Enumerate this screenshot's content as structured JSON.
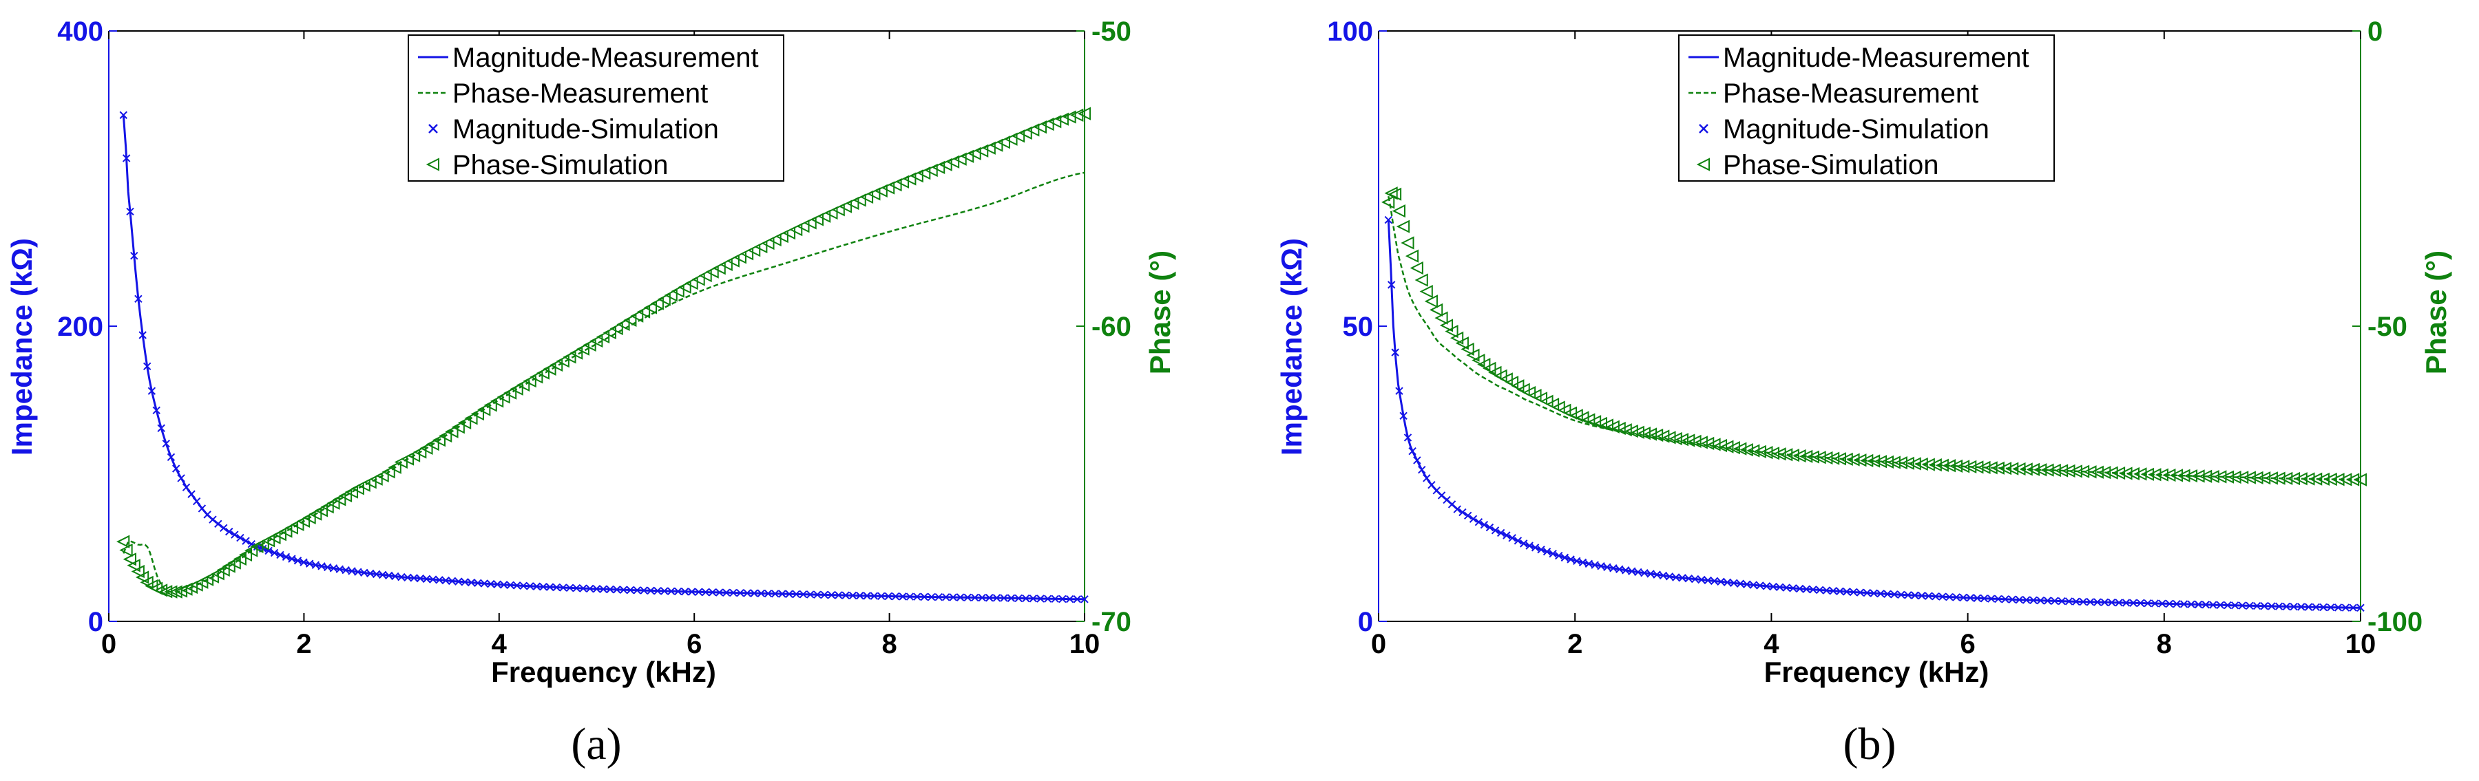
{
  "colors": {
    "magnitude": "#1414e6",
    "phase": "#0f820f",
    "axis": "#000000"
  },
  "legend_labels": [
    "Magnitude-Measurement",
    "Phase-Measurement",
    "Magnitude-Simulation",
    "Phase-Simulation"
  ],
  "chart_data": [
    {
      "type": "line",
      "caption": "(a)",
      "xlabel": "Frequency (kHz)",
      "ylabel_left": "Impedance (kΩ)",
      "ylabel_right": "Phase (°)",
      "xlim": [
        0,
        10
      ],
      "xticks": [
        0,
        2,
        4,
        6,
        8,
        10
      ],
      "ylim_left": [
        0,
        400
      ],
      "yticks_left": [
        0,
        200,
        400
      ],
      "ylim_right": [
        -70,
        -50
      ],
      "yticks_right": [
        -70,
        -60,
        -50
      ],
      "grid": false,
      "legend_position": "top-center",
      "x": [
        0.15,
        0.2,
        0.3,
        0.4,
        0.5,
        0.6,
        0.7,
        0.8,
        1,
        1.2,
        1.5,
        2,
        2.5,
        3,
        4,
        5,
        6,
        7,
        8,
        9,
        10
      ],
      "series": [
        {
          "name": "Magnitude-Measurement",
          "axis": "left",
          "style": "solid-line",
          "values": [
            343,
            290,
            220,
            170,
            140,
            118,
            102,
            90,
            73,
            62,
            51,
            40,
            34,
            30,
            25,
            22,
            20,
            18.5,
            17,
            16,
            15
          ]
        },
        {
          "name": "Phase-Measurement",
          "axis": "right",
          "style": "dashed-line",
          "values": [
            -67.7,
            -67.3,
            -67.4,
            -67.5,
            -68.5,
            -69.0,
            -69.0,
            -68.9,
            -68.6,
            -68.2,
            -67.5,
            -66.6,
            -65.6,
            -64.6,
            -62.5,
            -60.6,
            -58.9,
            -57.8,
            -56.8,
            -55.9,
            -54.8
          ]
        },
        {
          "name": "Magnitude-Simulation",
          "axis": "left",
          "style": "x-marker",
          "values": [
            343,
            290,
            220,
            170,
            140,
            118,
            102,
            90,
            73,
            62,
            51,
            40,
            34,
            30,
            25,
            22,
            20,
            18.5,
            17,
            16,
            15
          ]
        },
        {
          "name": "Phase-Simulation",
          "axis": "right",
          "style": "triangle-marker",
          "values": [
            -67.3,
            -67.8,
            -68.3,
            -68.7,
            -68.9,
            -69.0,
            -69.0,
            -68.9,
            -68.6,
            -68.2,
            -67.5,
            -66.6,
            -65.6,
            -64.6,
            -62.5,
            -60.5,
            -58.5,
            -56.8,
            -55.3,
            -54.0,
            -52.8
          ]
        }
      ]
    },
    {
      "type": "line",
      "caption": "(b)",
      "xlabel": "Frequency (kHz)",
      "ylabel_left": "Impedance (kΩ)",
      "ylabel_right": "Phase (°)",
      "xlim": [
        0,
        10
      ],
      "xticks": [
        0,
        2,
        4,
        6,
        8,
        10
      ],
      "ylim_left": [
        0,
        100
      ],
      "yticks_left": [
        0,
        50,
        100
      ],
      "ylim_right": [
        -100,
        0
      ],
      "yticks_right": [
        -100,
        -50,
        0
      ],
      "grid": false,
      "legend_position": "top-center",
      "x": [
        0.1,
        0.15,
        0.2,
        0.3,
        0.4,
        0.5,
        0.6,
        0.7,
        0.8,
        1,
        1.2,
        1.5,
        2,
        2.5,
        3,
        4,
        5,
        6,
        7,
        8,
        9,
        10
      ],
      "series": [
        {
          "name": "Magnitude-Measurement",
          "axis": "left",
          "style": "solid-line",
          "values": [
            68,
            50,
            40,
            31,
            27,
            24,
            22,
            20.5,
            19,
            17,
            15.3,
            13,
            10.3,
            8.7,
            7.5,
            5.9,
            4.8,
            4.0,
            3.4,
            3.0,
            2.6,
            2.3
          ]
        },
        {
          "name": "Phase-Measurement",
          "axis": "right",
          "style": "dashed-line",
          "values": [
            -28,
            -33,
            -38,
            -44,
            -47.5,
            -50,
            -52.5,
            -54,
            -55.5,
            -58,
            -60,
            -62.5,
            -66,
            -68,
            -69.5,
            -71.5,
            -72.8,
            -73.8,
            -74.5,
            -75.2,
            -75.7,
            -76
          ]
        },
        {
          "name": "Magnitude-Simulation",
          "axis": "left",
          "style": "x-marker",
          "values": [
            68,
            50,
            40,
            31,
            27,
            24,
            22,
            20.5,
            19,
            17,
            15.3,
            13,
            10.3,
            8.7,
            7.5,
            5.9,
            4.8,
            4.0,
            3.4,
            3.0,
            2.6,
            2.3
          ]
        },
        {
          "name": "Phase-Simulation",
          "axis": "right",
          "style": "triangle-marker",
          "values": [
            -29,
            -27,
            -30,
            -36,
            -40.5,
            -44.5,
            -47.5,
            -50,
            -52,
            -55.5,
            -58,
            -61,
            -65,
            -67.5,
            -69,
            -71.5,
            -72.8,
            -73.8,
            -74.5,
            -75.2,
            -75.7,
            -76
          ]
        }
      ]
    }
  ]
}
